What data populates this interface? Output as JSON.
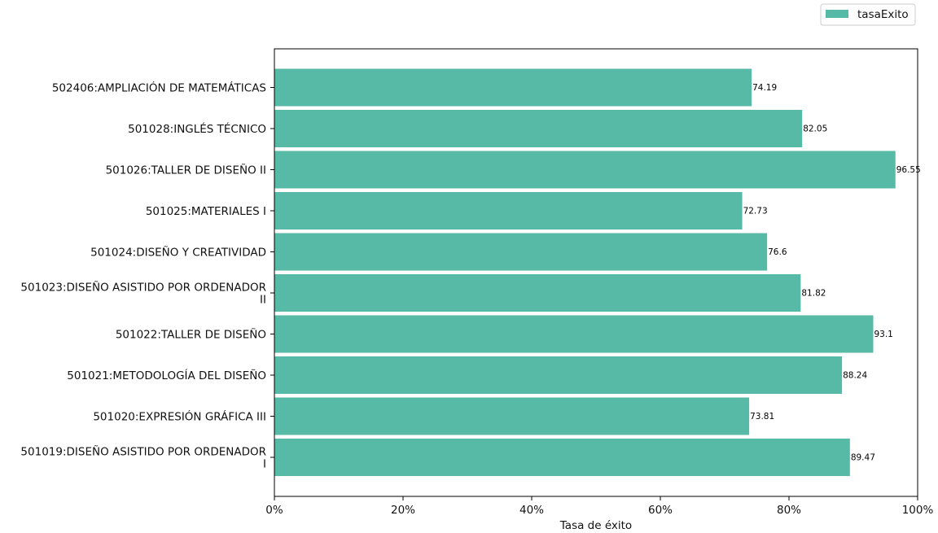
{
  "chart_data": {
    "type": "bar",
    "orientation": "horizontal",
    "categories": [
      "502406:AMPLIACIÓN DE MATEMÁTICAS",
      "501028:INGLÉS TÉCNICO",
      "501026:TALLER DE DISEÑO II",
      "501025:MATERIALES I",
      "501024:DISEÑO Y CREATIVIDAD",
      "501023:DISEÑO ASISTIDO POR ORDENADOR\nII",
      "501022:TALLER DE DISEÑO",
      "501021:METODOLOGÍA DEL DISEÑO",
      "501020:EXPRESIÓN GRÁFICA III",
      "501019:DISEÑO ASISTIDO POR ORDENADOR\nI"
    ],
    "series": [
      {
        "name": "tasaExito",
        "color": "#57baa6",
        "values": [
          74.19,
          82.05,
          96.55,
          72.73,
          76.6,
          81.82,
          93.1,
          88.24,
          73.81,
          89.47
        ],
        "value_labels": [
          "74.19",
          "82.05",
          "96.55",
          "72.73",
          "76.6",
          "81.82",
          "93.1",
          "88.24",
          "73.81",
          "89.47"
        ]
      }
    ],
    "xlabel": "Tasa de éxito",
    "ylabel": "",
    "xlim": [
      0,
      100
    ],
    "x_ticks": [
      0,
      20,
      40,
      60,
      80,
      100
    ],
    "x_tick_labels": [
      "0%",
      "20%",
      "40%",
      "60%",
      "80%",
      "100%"
    ],
    "grid": false,
    "legend_position": "top-right"
  }
}
